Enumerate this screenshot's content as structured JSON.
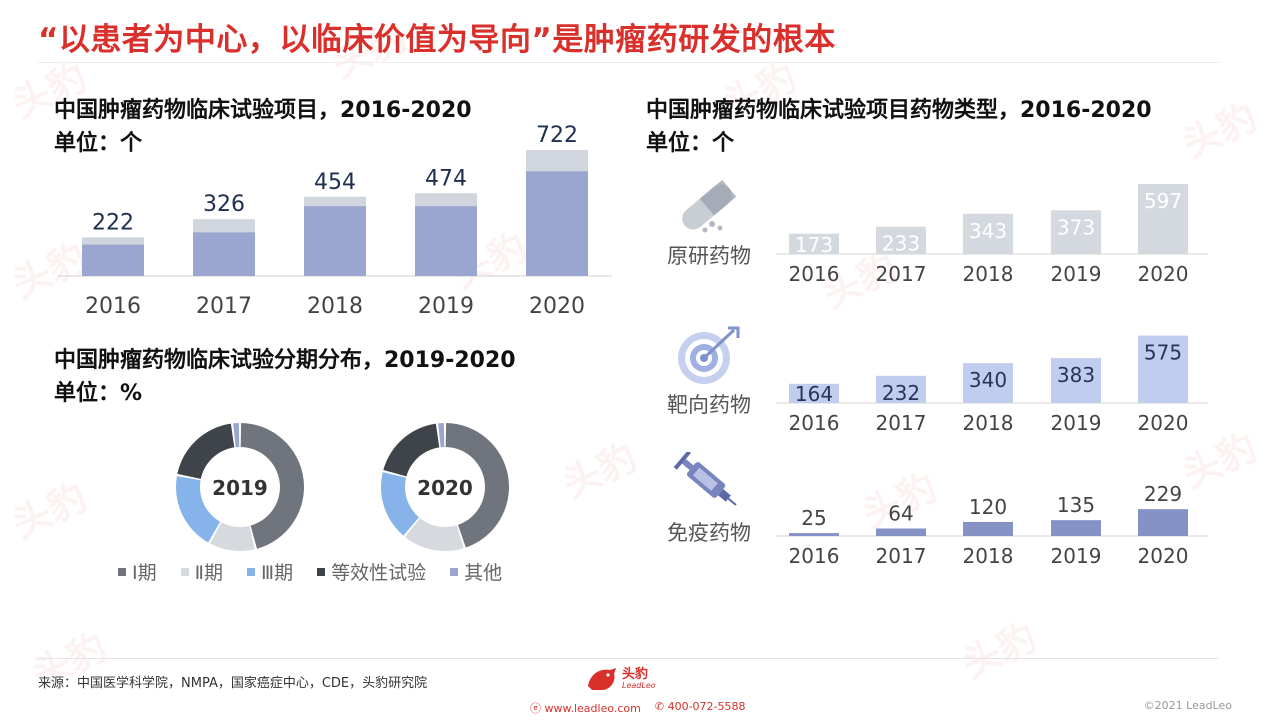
{
  "title": "“以患者为中心，以临床价值为导向”是肿瘤药研发的根本",
  "colors": {
    "accent": "#d9302c",
    "bar_light": "#d1d5de",
    "bar_blue": "#9aa6cf",
    "bar_target": "#c1cdef",
    "bar_immuno": "#8592c6"
  },
  "trials": {
    "title": "中国肿瘤药物临床试验项目，2016-2020",
    "unit": "单位：个"
  },
  "phase": {
    "title": "中国肿瘤药物临床试验分期分布，2019-2020",
    "unit": "单位：%",
    "legend": [
      "Ⅰ期",
      "Ⅱ期",
      "Ⅲ期",
      "等效性试验",
      "其他"
    ]
  },
  "types": {
    "title": "中国肿瘤药物临床试验项目药物类型，2016-2020",
    "unit": "单位：个",
    "categories": [
      {
        "label": "原研药物",
        "icon": "pill-capsule-icon"
      },
      {
        "label": "靶向药物",
        "icon": "target-icon"
      },
      {
        "label": "免疫药物",
        "icon": "syringe-icon"
      }
    ]
  },
  "chart_data": [
    {
      "type": "bar",
      "title": "中国肿瘤药物临床试验项目，2016-2020",
      "categories": [
        "2016",
        "2017",
        "2018",
        "2019",
        "2020"
      ],
      "values": [
        222,
        326,
        454,
        474,
        722
      ],
      "stack_estimate": [
        180,
        250,
        400,
        400,
        600
      ],
      "unit": "个"
    },
    {
      "type": "pie",
      "variant": "donut",
      "title": "2019",
      "labels": [
        "Ⅰ期",
        "Ⅱ期",
        "Ⅲ期",
        "等效性试验",
        "其他"
      ],
      "values": [
        46,
        12,
        20,
        20,
        2
      ],
      "colors": [
        "#6f747d",
        "#d6d9de",
        "#86b3ea",
        "#3f434a",
        "#9aa6cf"
      ]
    },
    {
      "type": "pie",
      "variant": "donut",
      "title": "2020",
      "labels": [
        "Ⅰ期",
        "Ⅱ期",
        "Ⅲ期",
        "等效性试验",
        "其他"
      ],
      "values": [
        45,
        16,
        18,
        19,
        2
      ],
      "colors": [
        "#6f747d",
        "#d6d9de",
        "#86b3ea",
        "#3f434a",
        "#9aa6cf"
      ]
    },
    {
      "type": "bar",
      "title": "原研药物",
      "categories": [
        "2016",
        "2017",
        "2018",
        "2019",
        "2020"
      ],
      "values": [
        173,
        233,
        343,
        373,
        597
      ]
    },
    {
      "type": "bar",
      "title": "靶向药物",
      "categories": [
        "2016",
        "2017",
        "2018",
        "2019",
        "2020"
      ],
      "values": [
        164,
        232,
        340,
        383,
        575
      ]
    },
    {
      "type": "bar",
      "title": "免疫药物",
      "categories": [
        "2016",
        "2017",
        "2018",
        "2019",
        "2020"
      ],
      "values": [
        25,
        64,
        120,
        135,
        229
      ]
    }
  ],
  "footer": {
    "source": "来源：中国医学科学院，NMPA，国家癌症中心，CDE，头豹研究院",
    "brand_name": "头豹",
    "brand_sub": "LeadLeo",
    "website": "www.leadleo.com",
    "phone": "400-072-5588",
    "copyright": "©2021 LeadLeo",
    "watermark": "头豹"
  }
}
